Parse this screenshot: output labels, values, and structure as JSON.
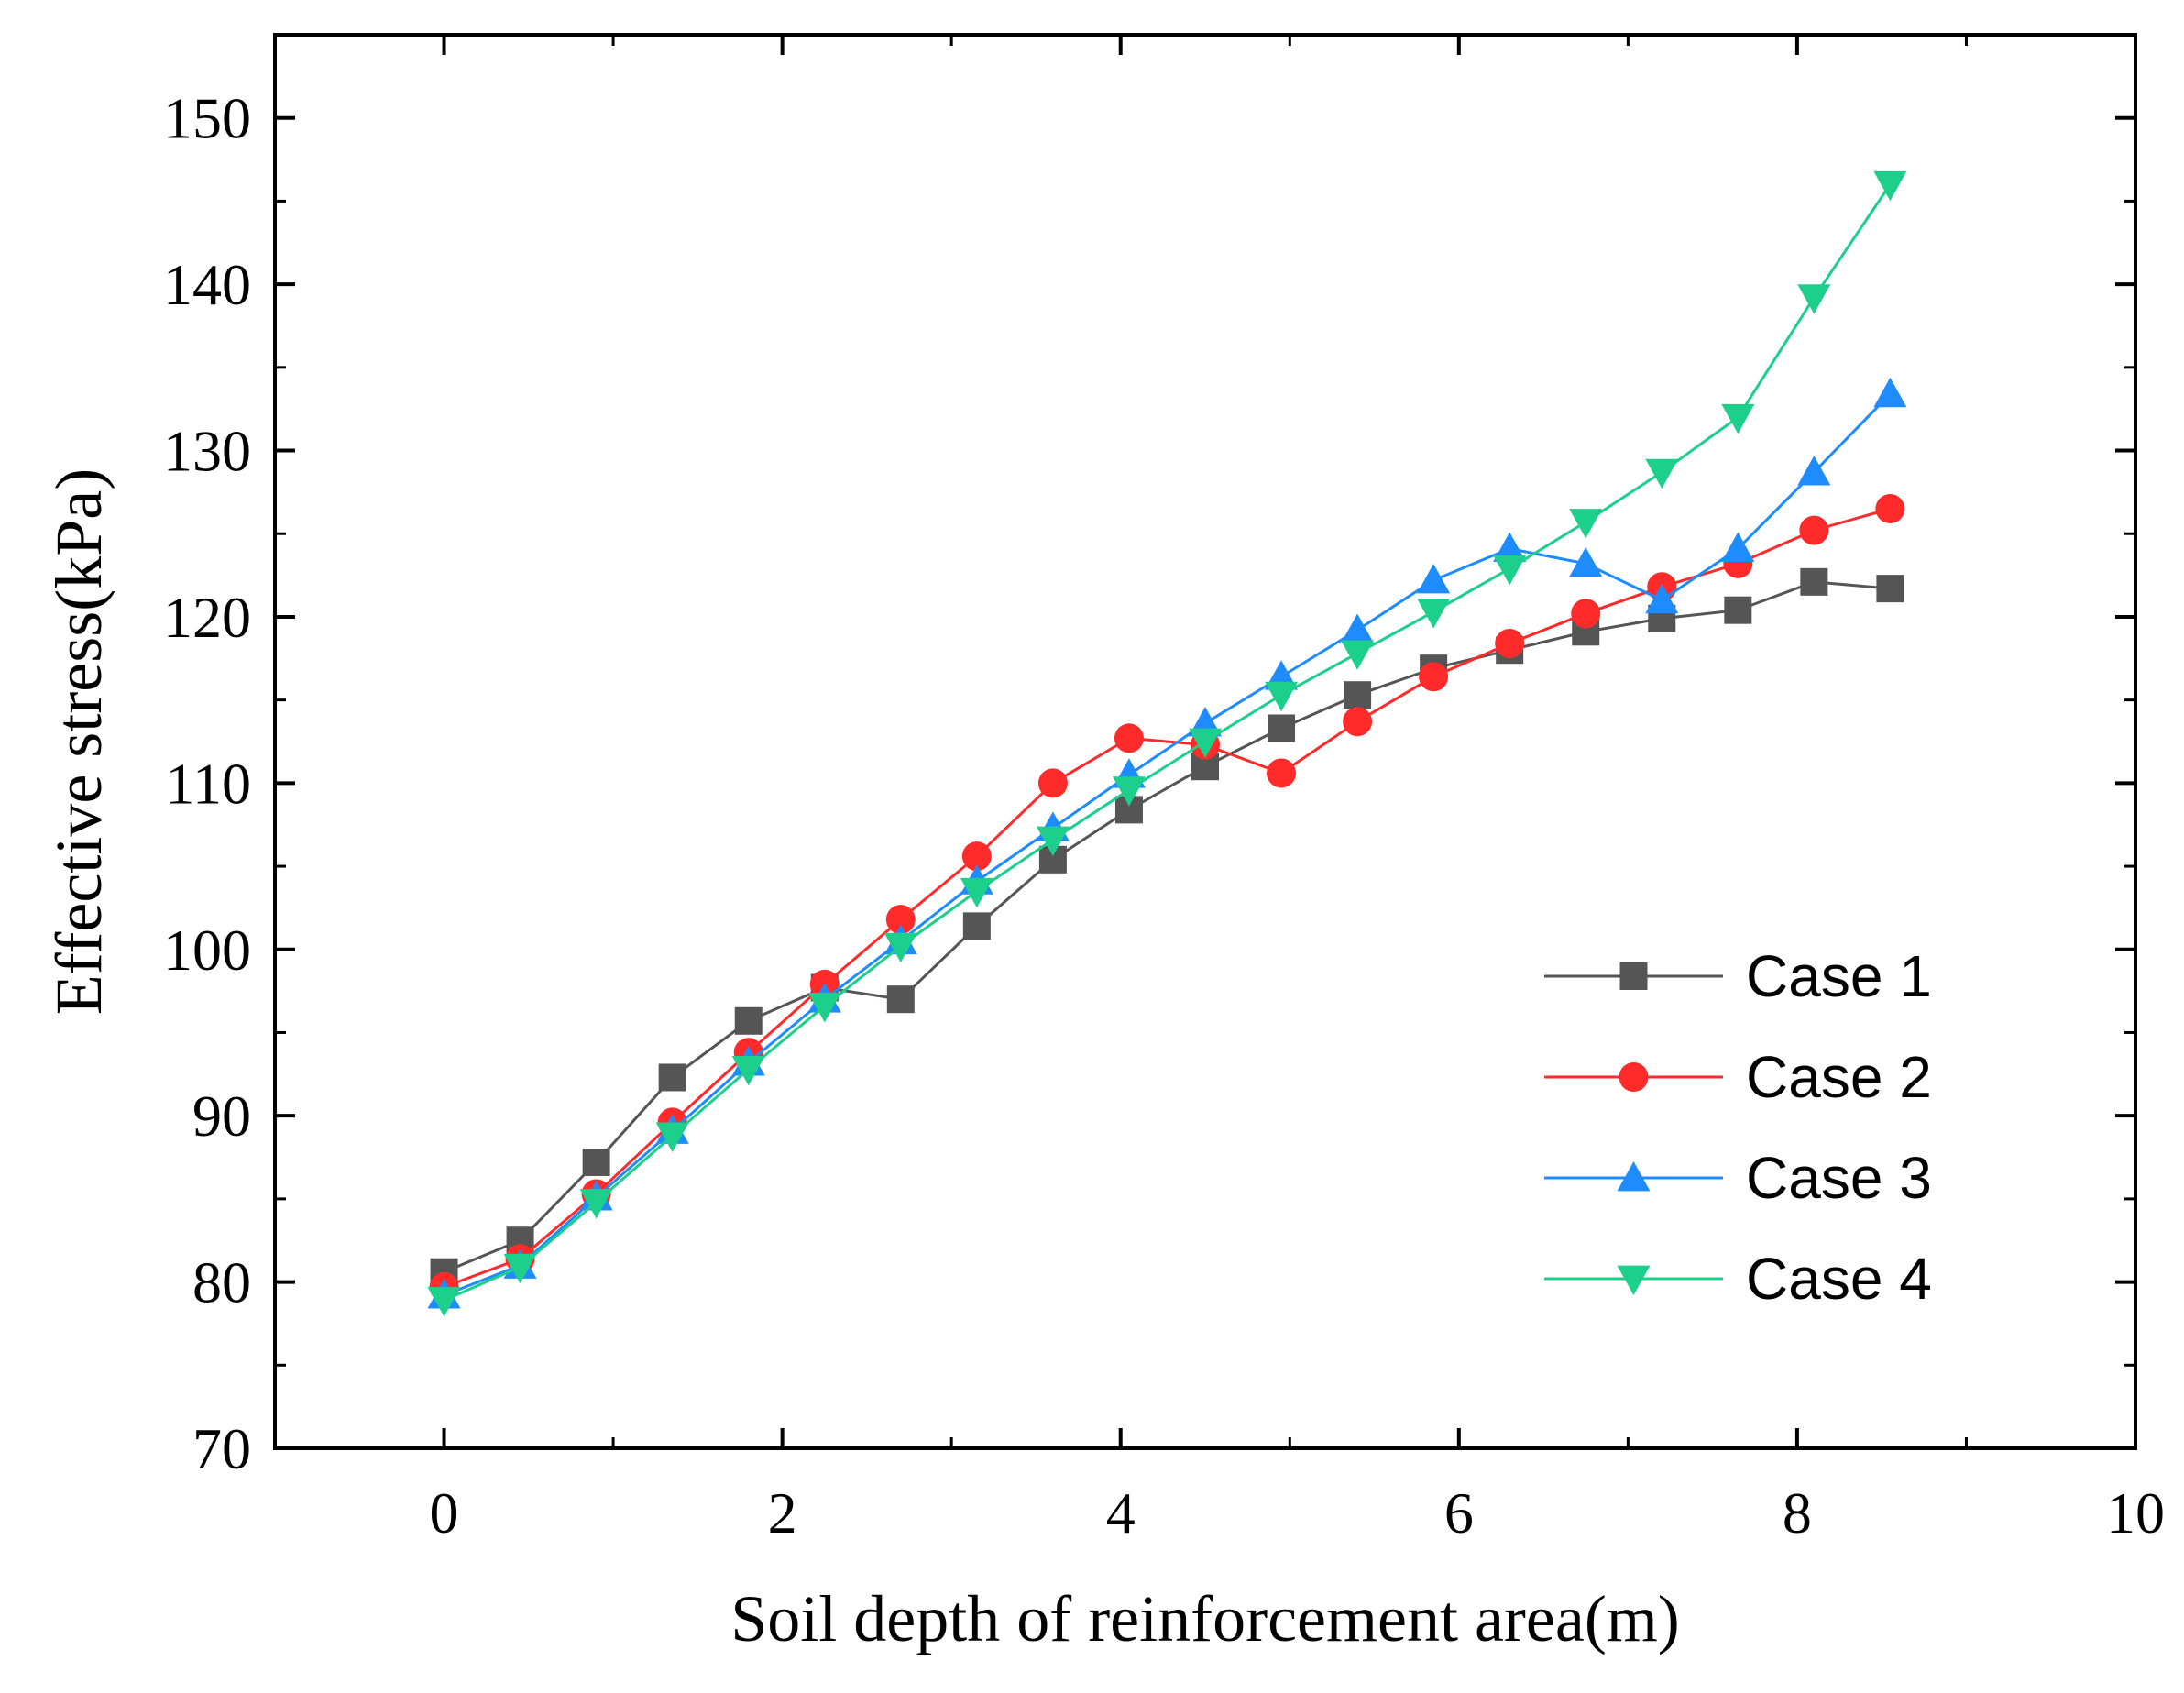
{
  "chart_data": {
    "type": "line",
    "xlabel": "Soil depth of reinforcement area(m)",
    "ylabel": "Effective stress(kPa)",
    "xlim": [
      -1,
      10
    ],
    "ylim": [
      70,
      155
    ],
    "xticks": [
      "0",
      "2",
      "4",
      "6",
      "8",
      "10"
    ],
    "yticks": [
      "70",
      "80",
      "90",
      "100",
      "110",
      "120",
      "130",
      "140",
      "150"
    ],
    "legend_position": "lower-right",
    "x": [
      0,
      0.45,
      0.9,
      1.35,
      1.8,
      2.25,
      2.7,
      3.15,
      3.6,
      4.05,
      4.5,
      4.95,
      5.4,
      5.85,
      6.3,
      6.75,
      7.2,
      7.65,
      8.1,
      8.55
    ],
    "series": [
      {
        "name": "Case 1",
        "color": "#555555",
        "marker": "square",
        "values": [
          80.6,
          82.5,
          87.2,
          92.3,
          95.7,
          97.7,
          97.0,
          101.4,
          105.4,
          108.4,
          111.0,
          113.3,
          115.3,
          116.9,
          118.0,
          119.1,
          119.9,
          120.4,
          122.1,
          121.7
        ]
      },
      {
        "name": "Case 2",
        "color": "#ff2a2a",
        "marker": "circle",
        "values": [
          79.7,
          81.4,
          85.3,
          89.6,
          93.8,
          97.9,
          101.8,
          105.6,
          110.0,
          112.7,
          112.3,
          110.6,
          113.7,
          116.4,
          118.4,
          120.2,
          121.8,
          123.2,
          125.2,
          126.5
        ]
      },
      {
        "name": "Case 3",
        "color": "#1e8cff",
        "marker": "triangle-up",
        "values": [
          79.2,
          81.0,
          85.1,
          89.1,
          93.2,
          97.0,
          100.5,
          104.1,
          107.3,
          110.5,
          113.6,
          116.4,
          119.2,
          122.2,
          124.1,
          123.2,
          121.0,
          124.1,
          128.7,
          133.4
        ]
      },
      {
        "name": "Case 4",
        "color": "#1ccf8a",
        "marker": "triangle-down",
        "values": [
          78.9,
          80.9,
          84.8,
          88.8,
          92.8,
          96.6,
          100.2,
          103.5,
          106.6,
          109.6,
          112.5,
          115.3,
          117.8,
          120.3,
          122.9,
          125.7,
          128.7,
          132.0,
          139.2,
          146.0
        ]
      }
    ]
  }
}
